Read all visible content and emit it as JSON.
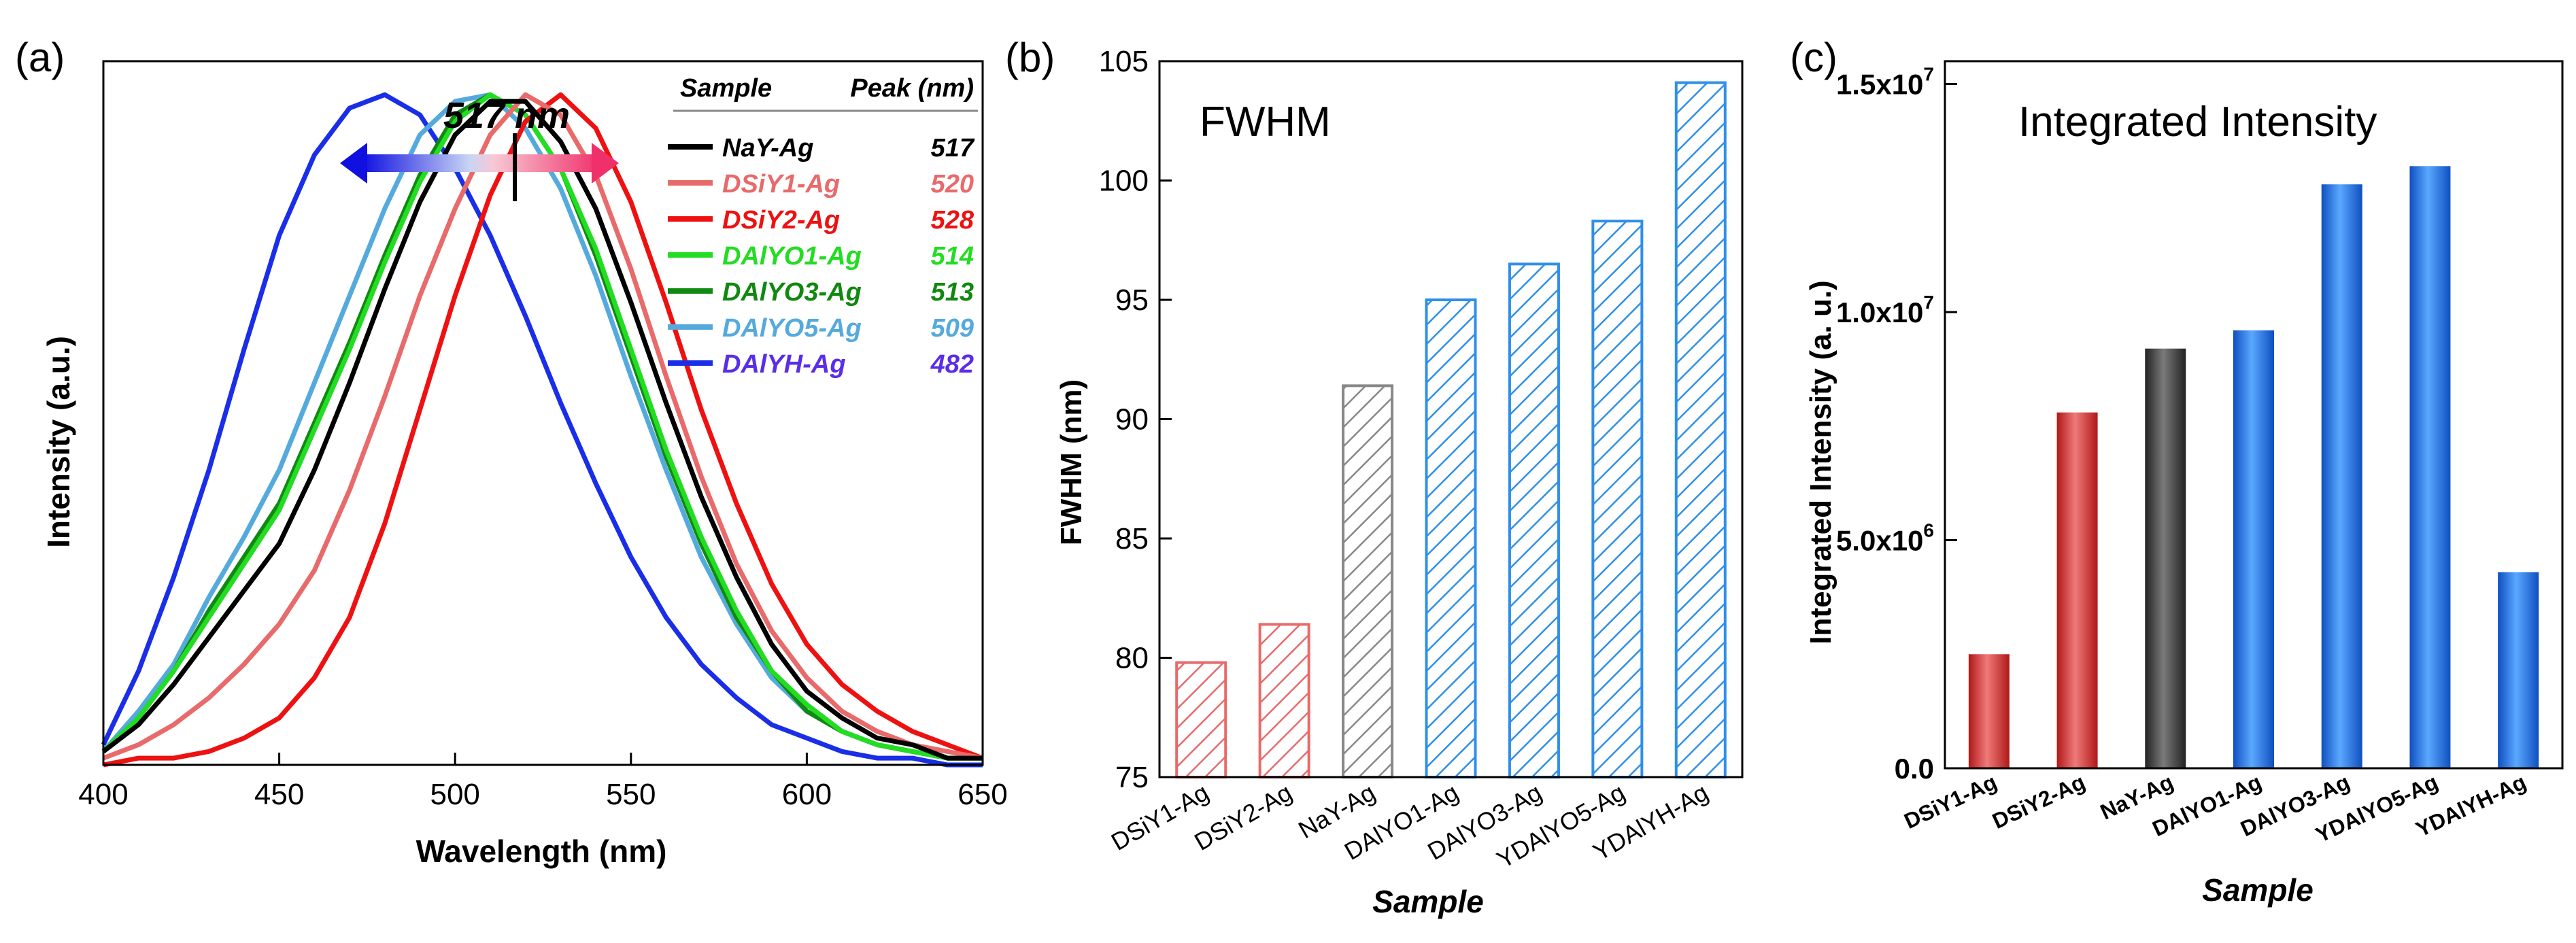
{
  "chart_data": [
    {
      "panel": "(a)",
      "type": "line",
      "xlabel": "Wavelength (nm)",
      "ylabel": "Intensity (a.u.)",
      "xlim": [
        400,
        650
      ],
      "xticks": [
        "400",
        "450",
        "500",
        "550",
        "600",
        "650"
      ],
      "ylim": [
        0,
        1.05
      ],
      "yticks_shown": false,
      "annotation": "517 nm",
      "legend": {
        "placement": "top-right",
        "header_sample": "Sample",
        "header_peak": "Peak (nm)"
      },
      "x": [
        400,
        410,
        420,
        430,
        440,
        450,
        460,
        470,
        480,
        490,
        500,
        510,
        520,
        530,
        540,
        550,
        560,
        570,
        580,
        590,
        600,
        610,
        620,
        630,
        640,
        650
      ],
      "series": [
        {
          "name": "NaY-Ag",
          "peak": "517",
          "color": "#000000",
          "label_color": "#000000",
          "values": [
            0.02,
            0.06,
            0.12,
            0.19,
            0.26,
            0.33,
            0.44,
            0.57,
            0.71,
            0.84,
            0.94,
            0.99,
            0.99,
            0.93,
            0.83,
            0.69,
            0.54,
            0.4,
            0.28,
            0.18,
            0.11,
            0.07,
            0.04,
            0.03,
            0.01,
            0.01
          ]
        },
        {
          "name": "DSiY1-Ag",
          "peak": "520",
          "color": "#e86a6a",
          "label_color": "#e86a6a",
          "values": [
            0.01,
            0.03,
            0.06,
            0.1,
            0.15,
            0.21,
            0.29,
            0.41,
            0.55,
            0.7,
            0.83,
            0.94,
            1.0,
            0.97,
            0.88,
            0.74,
            0.58,
            0.43,
            0.3,
            0.2,
            0.13,
            0.08,
            0.05,
            0.03,
            0.02,
            0.01
          ]
        },
        {
          "name": "DSiY2-Ag",
          "peak": "528",
          "color": "#ee1111",
          "label_color": "#ee1111",
          "values": [
            0.0,
            0.01,
            0.01,
            0.02,
            0.04,
            0.07,
            0.13,
            0.22,
            0.36,
            0.53,
            0.7,
            0.85,
            0.96,
            1.0,
            0.95,
            0.84,
            0.69,
            0.53,
            0.39,
            0.27,
            0.18,
            0.12,
            0.08,
            0.05,
            0.03,
            0.01
          ]
        },
        {
          "name": "DAlYO1-Ag",
          "peak": "514",
          "color": "#22dd22",
          "label_color": "#22dd22",
          "values": [
            0.02,
            0.07,
            0.14,
            0.22,
            0.3,
            0.38,
            0.5,
            0.62,
            0.75,
            0.87,
            0.96,
            1.0,
            0.97,
            0.89,
            0.77,
            0.62,
            0.47,
            0.34,
            0.23,
            0.14,
            0.09,
            0.05,
            0.03,
            0.02,
            0.01,
            0.01
          ]
        },
        {
          "name": "DAlYO3-Ag",
          "peak": "513",
          "color": "#118811",
          "label_color": "#118811",
          "values": [
            0.02,
            0.07,
            0.14,
            0.23,
            0.31,
            0.39,
            0.51,
            0.63,
            0.76,
            0.88,
            0.97,
            1.0,
            0.97,
            0.89,
            0.76,
            0.61,
            0.46,
            0.33,
            0.22,
            0.14,
            0.08,
            0.05,
            0.03,
            0.02,
            0.01,
            0.01
          ]
        },
        {
          "name": "DAlYO5-Ag",
          "peak": "509",
          "color": "#55aadd",
          "label_color": "#55aadd",
          "values": [
            0.02,
            0.08,
            0.15,
            0.25,
            0.34,
            0.44,
            0.57,
            0.7,
            0.83,
            0.94,
            0.99,
            1.0,
            0.95,
            0.86,
            0.73,
            0.58,
            0.44,
            0.31,
            0.21,
            0.13,
            0.08,
            0.05,
            0.03,
            0.02,
            0.01,
            0.01
          ]
        },
        {
          "name": "DAlYH-Ag",
          "peak": "482",
          "color": "#1a2ee8",
          "label_color": "#5a2ee8",
          "values": [
            0.03,
            0.14,
            0.28,
            0.44,
            0.62,
            0.79,
            0.91,
            0.98,
            1.0,
            0.97,
            0.89,
            0.79,
            0.67,
            0.54,
            0.42,
            0.31,
            0.22,
            0.15,
            0.1,
            0.06,
            0.04,
            0.02,
            0.01,
            0.01,
            0.0,
            0.0
          ]
        }
      ]
    },
    {
      "panel": "(b)",
      "type": "bar",
      "title": "FWHM",
      "xlabel": "Sample",
      "ylabel": "FWHM (nm)",
      "ylim": [
        75,
        105
      ],
      "yticks": [
        75,
        80,
        85,
        90,
        95,
        100,
        105
      ],
      "categories": [
        "DSiY1-Ag",
        "DSiY2-Ag",
        "NaY-Ag",
        "DAlYO1-Ag",
        "DAlYO3-Ag",
        "YDAlYO5-Ag",
        "YDAlYH-Ag"
      ],
      "values": [
        79.8,
        81.4,
        91.4,
        95.0,
        96.5,
        98.3,
        104.1
      ],
      "colors": [
        "#e86a6a",
        "#e86a6a",
        "#888888",
        "#2f8fe8",
        "#2f8fe8",
        "#2f8fe8",
        "#2f8fe8"
      ],
      "style": "hatched"
    },
    {
      "panel": "(c)",
      "type": "bar",
      "title": "Integrated Intensity",
      "xlabel": "Sample",
      "ylabel": "Integrated Intensity (a. u.)",
      "ylim": [
        0,
        15500000
      ],
      "yticks": [
        {
          "mantissa": "0.0",
          "exp": ""
        },
        {
          "mantissa": "5.0x10",
          "exp": "6"
        },
        {
          "mantissa": "1.0x10",
          "exp": "7"
        },
        {
          "mantissa": "1.5x10",
          "exp": "7"
        }
      ],
      "ytick_values": [
        0,
        5000000,
        10000000,
        15000000
      ],
      "categories": [
        "DSiY1-Ag",
        "DSiY2-Ag",
        "NaY-Ag",
        "DAlYO1-Ag",
        "DAlYO3-Ag",
        "YDAlYO5-Ag",
        "YDAlYH-Ag"
      ],
      "values": [
        2500000,
        7800000,
        9200000,
        9600000,
        12800000,
        13200000,
        4300000
      ],
      "colors": [
        "#d42c2c",
        "#d42c2c",
        "#444444",
        "#1f6fe0",
        "#1f6fe0",
        "#1f6fe0",
        "#1f6fe0"
      ],
      "style": "gradient"
    }
  ]
}
